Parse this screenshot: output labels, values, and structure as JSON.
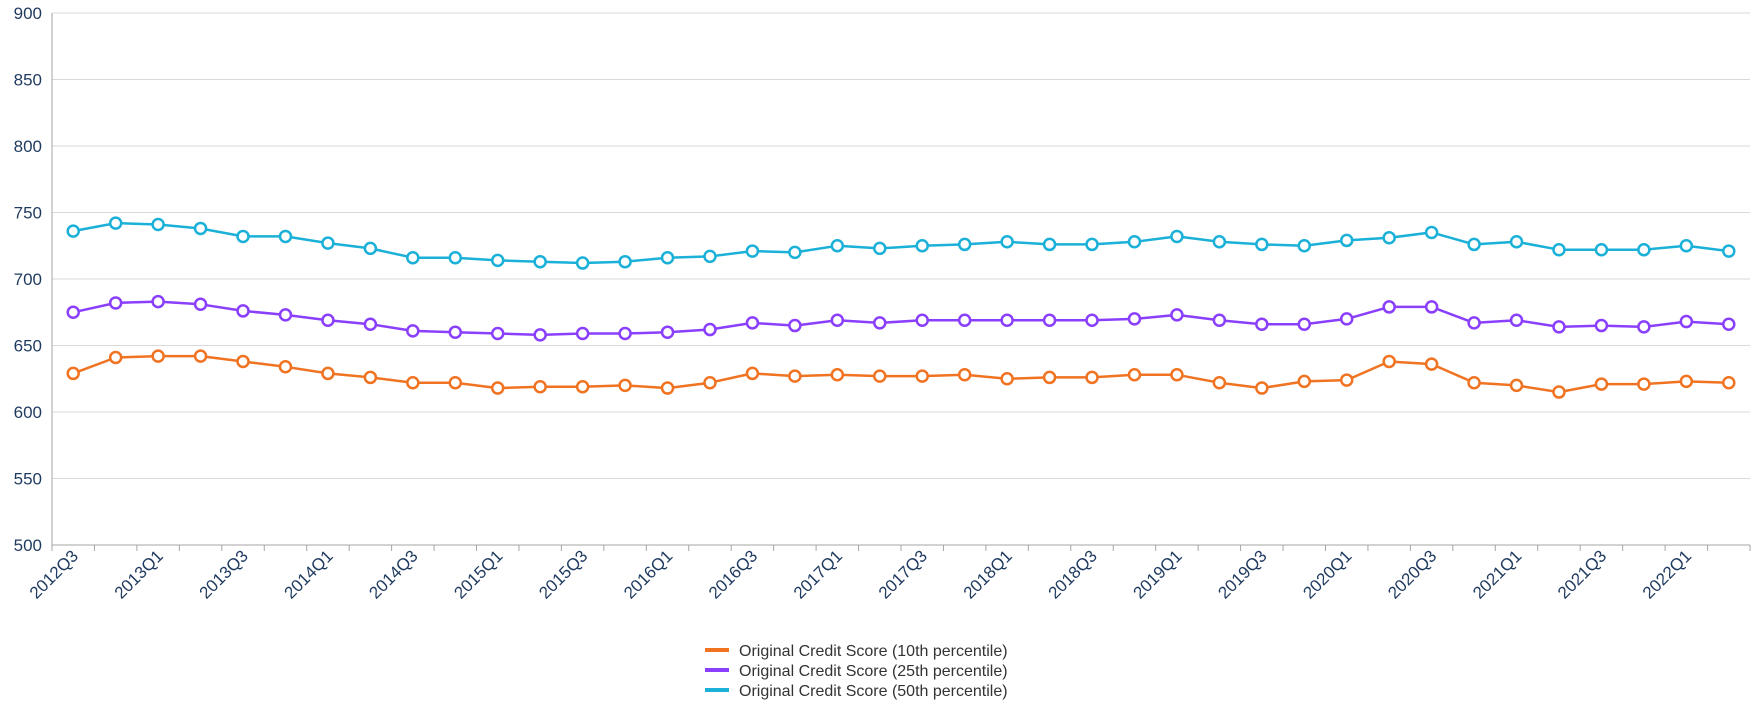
{
  "chart_data": {
    "type": "line",
    "title": "",
    "xlabel": "",
    "ylabel": "",
    "ylim": [
      500,
      900
    ],
    "yticks": [
      500,
      550,
      600,
      650,
      700,
      750,
      800,
      850,
      900
    ],
    "grid": true,
    "legend_position": "bottom",
    "x": [
      "2012Q3",
      "2012Q4",
      "2013Q1",
      "2013Q2",
      "2013Q3",
      "2013Q4",
      "2014Q1",
      "2014Q2",
      "2014Q3",
      "2014Q4",
      "2015Q1",
      "2015Q2",
      "2015Q3",
      "2015Q4",
      "2016Q1",
      "2016Q2",
      "2016Q3",
      "2016Q4",
      "2017Q1",
      "2017Q2",
      "2017Q3",
      "2017Q4",
      "2018Q1",
      "2018Q2",
      "2018Q3",
      "2018Q4",
      "2019Q1",
      "2019Q2",
      "2019Q3",
      "2019Q4",
      "2020Q1",
      "2020Q2",
      "2020Q3",
      "2020Q4",
      "2021Q1",
      "2021Q2",
      "2021Q3",
      "2021Q4",
      "2022Q1",
      "2022Q2"
    ],
    "xtick_labels": [
      "2012Q3",
      "2013Q1",
      "2013Q3",
      "2014Q1",
      "2014Q3",
      "2015Q1",
      "2015Q3",
      "2016Q1",
      "2016Q3",
      "2017Q1",
      "2017Q3",
      "2018Q1",
      "2018Q3",
      "2019Q1",
      "2019Q3",
      "2020Q1",
      "2020Q3",
      "2021Q1",
      "2021Q3",
      "2022Q1"
    ],
    "series": [
      {
        "name": "Original Credit Score (10th percentile)",
        "color": "#f07322",
        "values": [
          629,
          641,
          642,
          642,
          638,
          634,
          629,
          626,
          622,
          622,
          618,
          619,
          619,
          620,
          618,
          622,
          629,
          627,
          628,
          627,
          627,
          628,
          625,
          626,
          626,
          628,
          628,
          622,
          618,
          623,
          624,
          638,
          636,
          622,
          620,
          615,
          621,
          621,
          623,
          622
        ]
      },
      {
        "name": "Original Credit Score (25th percentile)",
        "color": "#8a3ffc",
        "values": [
          675,
          682,
          683,
          681,
          676,
          673,
          669,
          666,
          661,
          660,
          659,
          658,
          659,
          659,
          660,
          662,
          667,
          665,
          669,
          667,
          669,
          669,
          669,
          669,
          669,
          670,
          673,
          669,
          666,
          666,
          670,
          679,
          679,
          667,
          669,
          664,
          665,
          664,
          668,
          666
        ]
      },
      {
        "name": "Original Credit Score (50th percentile)",
        "color": "#1ab0d8",
        "values": [
          736,
          742,
          741,
          738,
          732,
          732,
          727,
          723,
          716,
          716,
          714,
          713,
          712,
          713,
          716,
          717,
          721,
          720,
          725,
          723,
          725,
          726,
          728,
          726,
          726,
          728,
          732,
          728,
          726,
          725,
          729,
          731,
          735,
          726,
          728,
          722,
          722,
          722,
          725,
          721
        ]
      }
    ]
  }
}
